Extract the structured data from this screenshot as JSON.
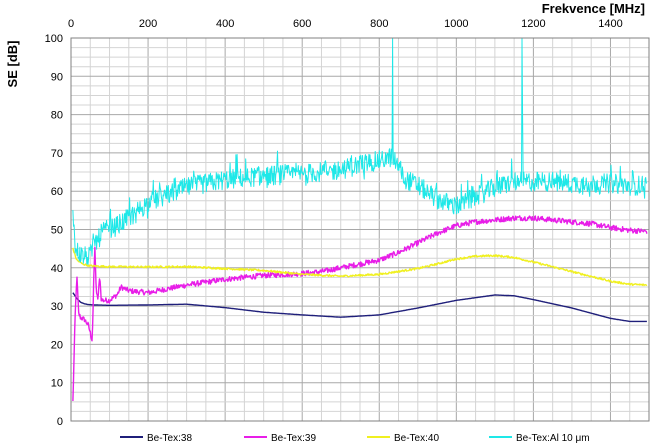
{
  "chart_data": {
    "type": "line",
    "title": "",
    "xlabel": "Frekvence [MHz]",
    "ylabel": "SE [dB]",
    "xlim": [
      0,
      1500
    ],
    "ylim": [
      0,
      100
    ],
    "x_ticks": [
      0,
      200,
      400,
      600,
      800,
      1000,
      1200,
      1400
    ],
    "y_ticks": [
      0,
      10,
      20,
      30,
      40,
      50,
      60,
      70,
      80,
      90,
      100
    ],
    "x_axis_position": "top",
    "grid": true,
    "legend_position": "bottom",
    "series": [
      {
        "name": "Be-Tex:38",
        "color": "#1f1f7a",
        "noise": 0,
        "x": [
          5,
          15,
          25,
          35,
          45,
          60,
          100,
          200,
          300,
          400,
          500,
          600,
          700,
          800,
          900,
          1000,
          1100,
          1150,
          1200,
          1300,
          1400,
          1450,
          1495
        ],
        "y": [
          33.5,
          32,
          31,
          30.6,
          30.4,
          30.3,
          30.2,
          30.3,
          30.5,
          29.6,
          28.4,
          27.7,
          27.1,
          27.7,
          29.5,
          31.5,
          32.9,
          32.7,
          31.7,
          29.5,
          26.8,
          26,
          26
        ]
      },
      {
        "name": "Be-Tex:39",
        "color": "#e81ee8",
        "noise": 0.7,
        "x": [
          5,
          10,
          15,
          20,
          25,
          35,
          45,
          55,
          60,
          62,
          66,
          70,
          75,
          78,
          82,
          90,
          100,
          120,
          130,
          150,
          200,
          250,
          300,
          400,
          500,
          600,
          650,
          700,
          800,
          850,
          900,
          950,
          1000,
          1050,
          1100,
          1150,
          1200,
          1250,
          1300,
          1350,
          1400,
          1450,
          1495
        ],
        "y": [
          5,
          25,
          38,
          28,
          27,
          26.5,
          25,
          21,
          40,
          45,
          33,
          32,
          38,
          32,
          31.5,
          31.5,
          31.5,
          33,
          35,
          34,
          33.5,
          34.5,
          35.5,
          37,
          38,
          38.5,
          39,
          40,
          42,
          44,
          46.5,
          49,
          51,
          52,
          52.5,
          53,
          53,
          52.5,
          52,
          51.5,
          50.5,
          49.8,
          49.5
        ]
      },
      {
        "name": "Be-Tex:40",
        "color": "#f0f020",
        "noise": 0.25,
        "x": [
          5,
          15,
          30,
          50,
          100,
          200,
          300,
          400,
          500,
          600,
          700,
          800,
          900,
          950,
          1000,
          1050,
          1100,
          1150,
          1200,
          1300,
          1400,
          1450,
          1495
        ],
        "y": [
          45,
          42,
          41,
          40.5,
          40.3,
          40.2,
          40.3,
          39.8,
          39.3,
          38.3,
          37.8,
          38.3,
          39.8,
          41,
          42.3,
          43,
          43.2,
          42.7,
          41.5,
          39,
          36.5,
          35.7,
          35.5
        ]
      },
      {
        "name": "Be-Tex:Al 10 μm",
        "color": "#1ee8e8",
        "noise": 2.6,
        "x": [
          5,
          10,
          20,
          30,
          40,
          50,
          60,
          70,
          80,
          100,
          120,
          150,
          200,
          250,
          300,
          350,
          400,
          500,
          600,
          700,
          750,
          800,
          835,
          870,
          900,
          950,
          1000,
          1050,
          1100,
          1150,
          1200,
          1250,
          1300,
          1350,
          1400,
          1450,
          1495
        ],
        "y": [
          57,
          45,
          44,
          43,
          43,
          43,
          47,
          47,
          49.5,
          50,
          51,
          53,
          57,
          59,
          61,
          62,
          63,
          64,
          64.5,
          65.5,
          67,
          68,
          69,
          63,
          61.5,
          58,
          56,
          58.5,
          61,
          62.5,
          62.5,
          62.5,
          62,
          62,
          62,
          61.5,
          61.5
        ],
        "spikes": [
          {
            "x": 835,
            "y": 100
          },
          {
            "x": 1170,
            "y": 100
          },
          {
            "x": 1172,
            "y": 79
          }
        ]
      }
    ]
  }
}
